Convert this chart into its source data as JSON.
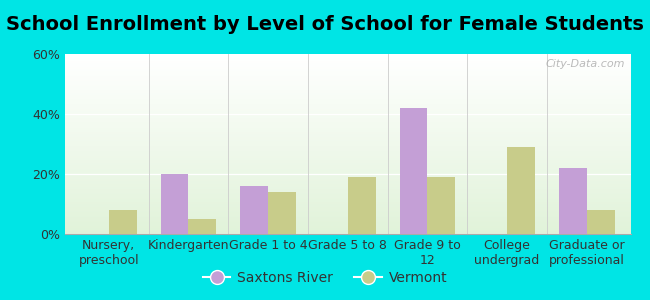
{
  "title": "School Enrollment by Level of School for Female Students",
  "categories": [
    "Nursery,\npreschool",
    "Kindergarten",
    "Grade 1 to 4",
    "Grade 5 to 8",
    "Grade 9 to\n12",
    "College\nundergrad",
    "Graduate or\nprofessional"
  ],
  "saxtons_river": [
    0,
    20,
    16,
    0,
    42,
    0,
    22
  ],
  "vermont": [
    8,
    5,
    14,
    19,
    19,
    29,
    8
  ],
  "bar_color_saxtons": "#c49fd6",
  "bar_color_vermont": "#c8cc8a",
  "outer_bg": "#00e5e5",
  "ylim": [
    0,
    60
  ],
  "yticks": [
    0,
    20,
    40,
    60
  ],
  "ytick_labels": [
    "0%",
    "20%",
    "40%",
    "60%"
  ],
  "legend_saxtons": "Saxtons River",
  "legend_vermont": "Vermont",
  "bar_width": 0.35,
  "title_fontsize": 14,
  "tick_fontsize": 9,
  "legend_fontsize": 10
}
